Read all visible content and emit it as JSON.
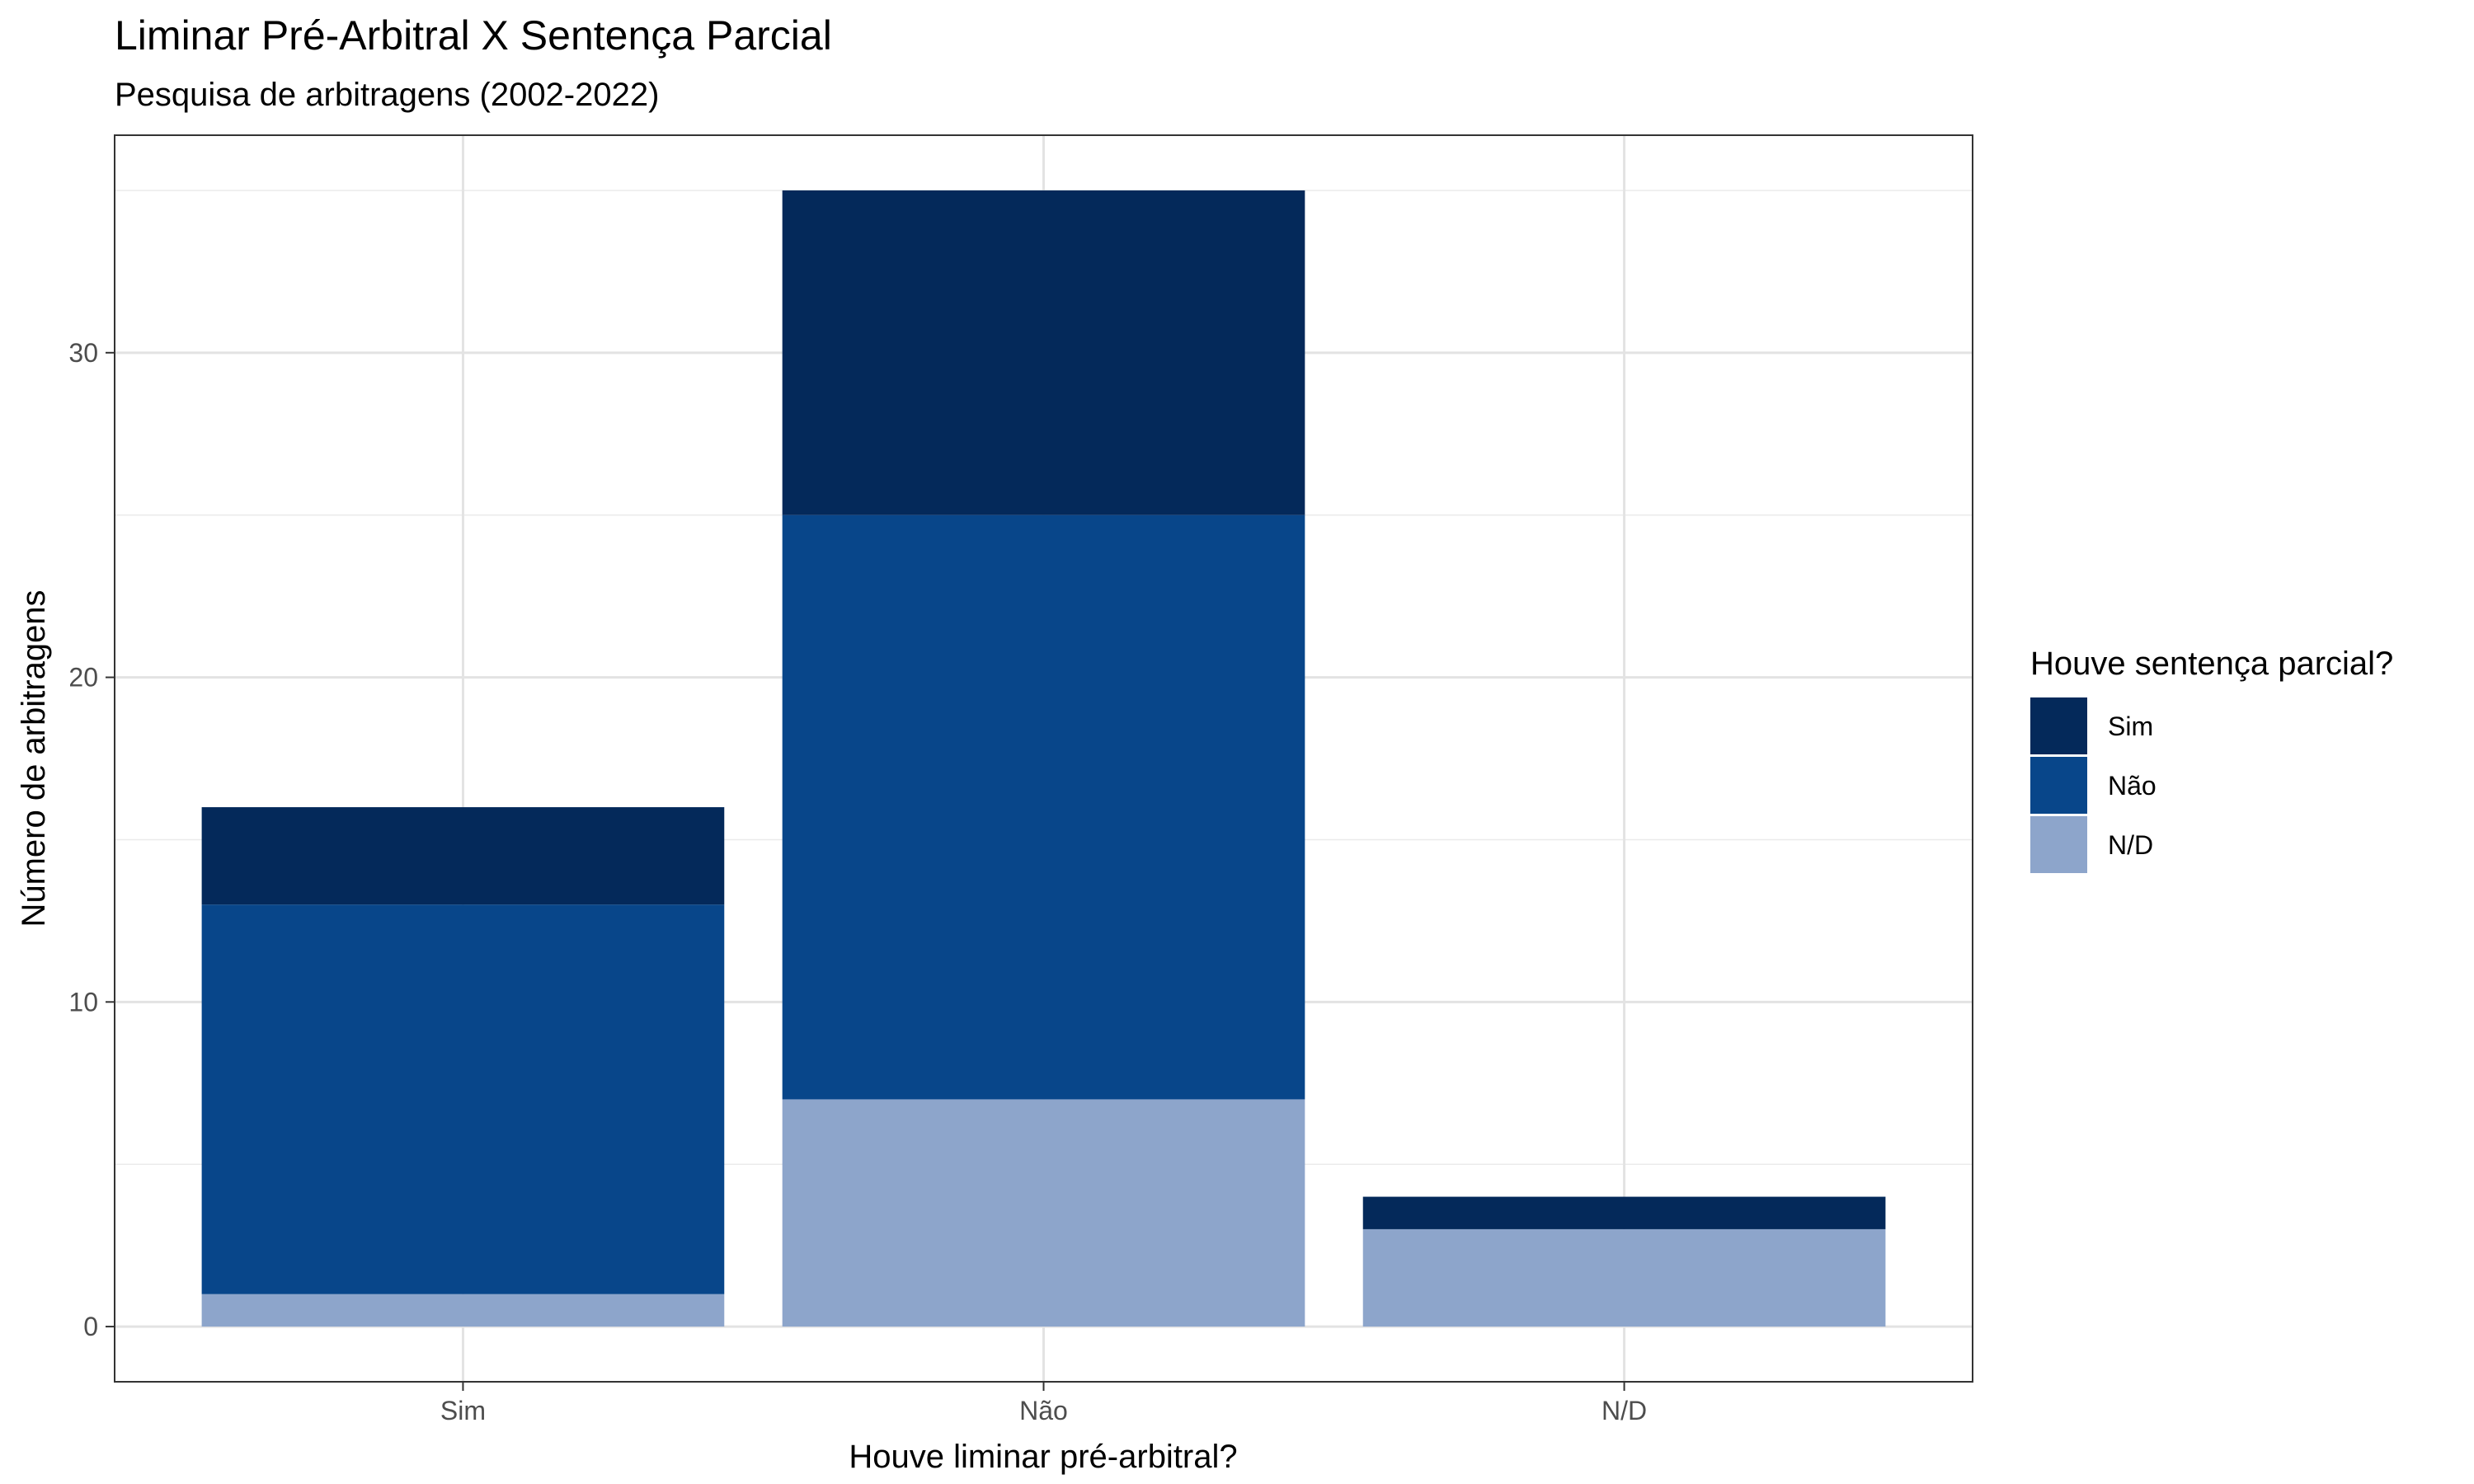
{
  "chart_data": {
    "type": "bar",
    "stacked": true,
    "title": "Liminar Pré-Arbitral X Sentença Parcial",
    "subtitle": "Pesquisa de arbitragens (2002-2022)",
    "xlabel": "Houve liminar pré-arbitral?",
    "ylabel": "Número de arbitragens",
    "categories": [
      "Sim",
      "Não",
      "N/D"
    ],
    "ylim": [
      -1.7,
      36.7
    ],
    "yticks": [
      0,
      10,
      20,
      30
    ],
    "grid": true,
    "legend_position": "right",
    "legend_title": "Houve sentença parcial?",
    "series": [
      {
        "name": "Sim",
        "color": "#04295A",
        "values": [
          3,
          10,
          1
        ]
      },
      {
        "name": "Não",
        "color": "#08468A",
        "values": [
          12,
          18,
          0
        ]
      },
      {
        "name": "N/D",
        "color": "#8DA5CB",
        "values": [
          1,
          7,
          3
        ]
      }
    ]
  }
}
